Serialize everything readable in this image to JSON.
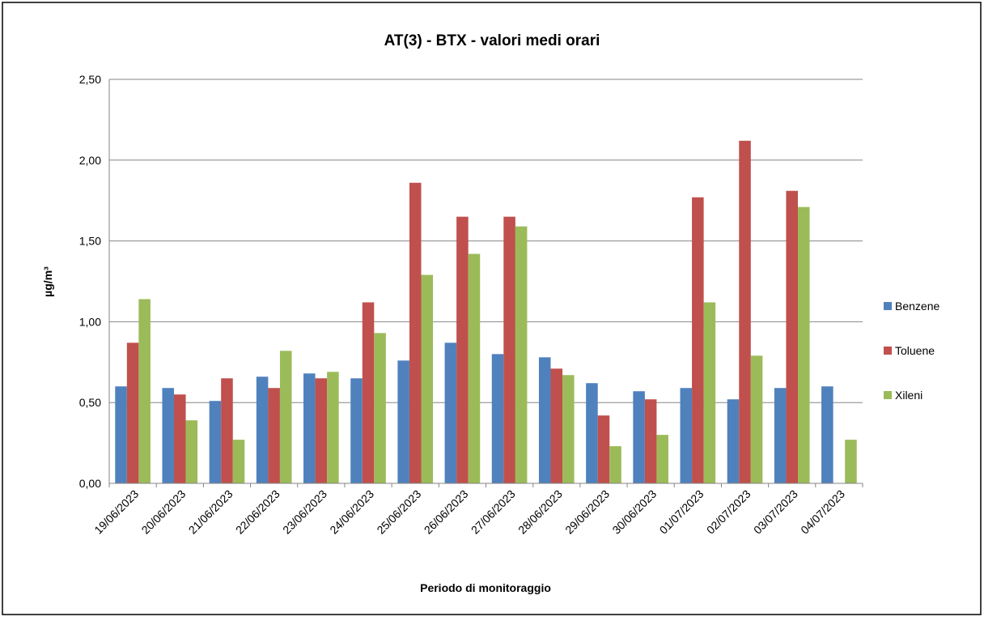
{
  "chart_data": {
    "type": "bar",
    "title": "AT(3) - BTX - valori medi orari",
    "x_label": "Periodo di monitoraggio",
    "y_label": "µg/m³",
    "categories": [
      "19/06/2023",
      "20/06/2023",
      "21/06/2023",
      "22/06/2023",
      "23/06/2023",
      "24/06/2023",
      "25/06/2023",
      "26/06/2023",
      "27/06/2023",
      "28/06/2023",
      "29/06/2023",
      "30/06/2023",
      "01/07/2023",
      "02/07/2023",
      "03/07/2023",
      "04/07/2023"
    ],
    "series": [
      {
        "name": "Benzene",
        "color": "#4f81bd",
        "values": [
          0.6,
          0.59,
          0.51,
          0.66,
          0.68,
          0.65,
          0.76,
          0.87,
          0.8,
          0.78,
          0.62,
          0.57,
          0.59,
          0.52,
          0.59,
          0.6
        ]
      },
      {
        "name": "Toluene",
        "color": "#c0504d",
        "values": [
          0.87,
          0.55,
          0.65,
          0.59,
          0.65,
          1.12,
          1.86,
          1.65,
          1.65,
          0.71,
          0.42,
          0.52,
          1.77,
          2.12,
          1.81,
          null
        ]
      },
      {
        "name": "Xileni",
        "color": "#9bbb59",
        "values": [
          1.14,
          0.39,
          0.27,
          0.82,
          0.69,
          0.93,
          1.29,
          1.42,
          1.59,
          0.67,
          0.23,
          0.3,
          1.12,
          0.79,
          1.71,
          0.27
        ]
      }
    ],
    "ylim": [
      0,
      2.5
    ],
    "yticks": [
      {
        "value": 0,
        "label": "0,00"
      },
      {
        "value": 0.5,
        "label": "0,50"
      },
      {
        "value": 1,
        "label": "1,00"
      },
      {
        "value": 1.5,
        "label": "1,50"
      },
      {
        "value": 2,
        "label": "2,00"
      },
      {
        "value": 2.5,
        "label": "2,50"
      }
    ],
    "grid": true,
    "legend": "right"
  }
}
